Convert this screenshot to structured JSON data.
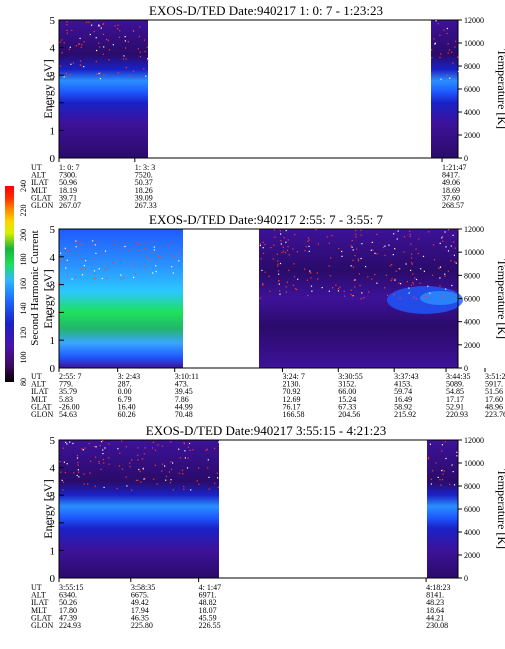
{
  "colors": {
    "background": "#ffffff",
    "dark_purple": "#2a0b6a",
    "purple": "#3d1299",
    "deep_blue": "#1a22c8",
    "blue": "#1e5aff",
    "light_blue": "#3aa6ff",
    "green": "#1ee05a",
    "speckle": "#ff3c1e"
  },
  "colorbar": {
    "label": "Second Harmonic Current",
    "ticks": [
      "80",
      "100",
      "120",
      "140",
      "160",
      "180",
      "200",
      "220",
      "240"
    ],
    "colors": [
      "#000000",
      "#3d0a5c",
      "#4b12a8",
      "#1a22c8",
      "#1f6bff",
      "#2fb7ff",
      "#1ee05a",
      "#19b33b",
      "#d6f000",
      "#ffd400",
      "#ff8a00",
      "#ff2a00",
      "#ff0000"
    ]
  },
  "chart_data": [
    {
      "type": "heatmap",
      "title": "EXOS-D/TED   Date:940217  1: 0: 7 - 1:23:23",
      "ylabel": "Energy [eV]",
      "y2label": "Temperature [K]",
      "ylim": [
        0,
        5
      ],
      "y2lim": [
        0,
        12000
      ],
      "yticks": [
        "0",
        "1",
        "2",
        "3",
        "4",
        "5"
      ],
      "y2ticks": [
        "0",
        "2000",
        "4000",
        "6000",
        "8000",
        "10000",
        "12000"
      ],
      "data_blocks": [
        [
          0,
          0.39
        ],
        [
          0.96,
          1.0
        ]
      ],
      "ephemeris": {
        "row_labels": [
          "UT",
          "ALT",
          "ILAT",
          "MLT",
          "GLAT",
          "GLON"
        ],
        "columns": [
          {
            "frac": 0.0,
            "values": [
              "1: 0: 7",
              "7300.",
              "50.96",
              "18.19",
              "39.71",
              "267.07"
            ]
          },
          {
            "frac": 0.19,
            "values": [
              "1: 3: 3",
              "7520.",
              "50.37",
              "18.26",
              "39.09",
              "267.33"
            ]
          },
          {
            "frac": 0.96,
            "values": [
              "1:21:47",
              "8417.",
              "49.06",
              "18.69",
              "37.60",
              "268.57"
            ]
          }
        ]
      }
    },
    {
      "type": "heatmap",
      "title": "EXOS-D/TED   Date:940217  2:55: 7 - 3:55: 7",
      "ylabel": "Energy [eV]",
      "y2label": "Temperature [K]",
      "ylim": [
        0,
        5
      ],
      "y2lim": [
        0,
        12000
      ],
      "yticks": [
        "0",
        "1",
        "2",
        "3",
        "4",
        "5"
      ],
      "y2ticks": [
        "0",
        "2000",
        "4000",
        "6000",
        "8000",
        "10000",
        "12000"
      ],
      "data_blocks": [
        [
          0,
          0.37
        ],
        [
          0.56,
          1.0
        ]
      ],
      "ephemeris": {
        "row_labels": [
          "UT",
          "ALT",
          "ILAT",
          "MLT",
          "GLAT",
          "GLON"
        ],
        "columns": [
          {
            "frac": 0.0,
            "values": [
              "2:55: 7",
              "779.",
              "35.79",
              "5.83",
              "-26.00",
              "54.63"
            ]
          },
          {
            "frac": 0.147,
            "values": [
              "3: 2:43",
              "287.",
              "0.00",
              "6.79",
              "16.40",
              "60.26"
            ]
          },
          {
            "frac": 0.29,
            "values": [
              "3:10:11",
              "473.",
              "39.45",
              "7.86",
              "44.99",
              "70.48"
            ]
          },
          {
            "frac": 0.56,
            "values": [
              "3:24: 7",
              "2130.",
              "70.92",
              "12.69",
              "76.17",
              "166.58"
            ]
          },
          {
            "frac": 0.7,
            "values": [
              "3:30:55",
              "3152.",
              "66.00",
              "15.24",
              "67.33",
              "204.56"
            ]
          },
          {
            "frac": 0.84,
            "values": [
              "3:37:43",
              "4153.",
              "59.74",
              "16.49",
              "58.92",
              "215.92"
            ]
          },
          {
            "frac": 0.97,
            "values": [
              "3:44:35",
              "5089.",
              "54.85",
              "17.17",
              "52.91",
              "220.93"
            ]
          },
          {
            "frac": 1.11,
            "values": [
              "3:51:23",
              "5917.",
              "51.56",
              "17.60",
              "48.96",
              "223.76"
            ]
          }
        ]
      }
    },
    {
      "type": "heatmap",
      "title": "EXOS-D/TED   Date:940217  3:55:15 - 4:21:23",
      "ylabel": "Energy [eV]",
      "y2label": "Temperature [K]",
      "ylim": [
        0,
        5
      ],
      "y2lim": [
        0,
        12000
      ],
      "yticks": [
        "0",
        "1",
        "2",
        "3",
        "4",
        "5"
      ],
      "y2ticks": [
        "0",
        "2000",
        "4000",
        "6000",
        "8000",
        "10000",
        "12000"
      ],
      "data_blocks": [
        [
          0,
          0.4
        ],
        [
          0.92,
          1.0
        ]
      ],
      "ephemeris": {
        "row_labels": [
          "UT",
          "ALT",
          "ILAT",
          "MLT",
          "GLAT",
          "GLON"
        ],
        "columns": [
          {
            "frac": 0.0,
            "values": [
              "3:55:15",
              "6340.",
              "50.26",
              "17.80",
              "47.39",
              "224.93"
            ]
          },
          {
            "frac": 0.18,
            "values": [
              "3:58:35",
              "6675.",
              "49.42",
              "17.94",
              "46.35",
              "225.80"
            ]
          },
          {
            "frac": 0.35,
            "values": [
              "4: 1:47",
              "6971.",
              "48.82",
              "18.07",
              "45.59",
              "226.55"
            ]
          },
          {
            "frac": 0.92,
            "values": [
              "4:18:23",
              "8141.",
              "48.23",
              "18.64",
              "44.21",
              "230.08"
            ]
          }
        ]
      }
    }
  ]
}
